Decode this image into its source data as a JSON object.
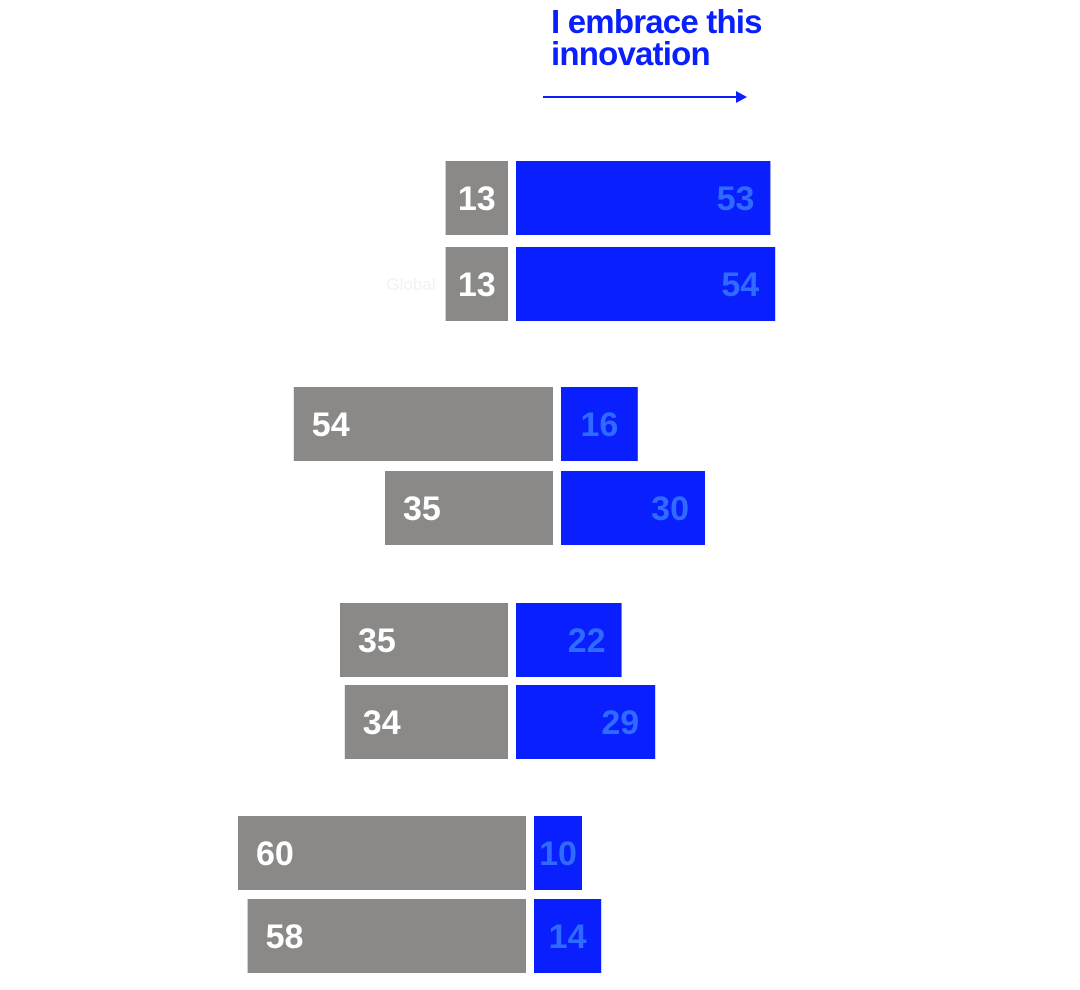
{
  "header": {
    "title": "I embrace this\ninnovation"
  },
  "colors": {
    "accent": "#0a1ffe",
    "blue_label": "#2f6bff",
    "negative": "#8a8987",
    "negative_label": "#ffffff",
    "row_label": "#f2f2f2"
  },
  "chart_data": {
    "type": "bar",
    "orientation": "horizontal-diverging",
    "title": "",
    "xlabel": "",
    "ylabel": "",
    "series": [
      {
        "name": "",
        "color": "#8a8987",
        "values": [
          13,
          13,
          54,
          35,
          35,
          34,
          60,
          58
        ]
      },
      {
        "name": "I embrace this innovation",
        "color": "#0a1ffe",
        "values": [
          53,
          54,
          16,
          30,
          22,
          29,
          10,
          14
        ]
      }
    ],
    "rows": [
      {
        "label": "",
        "group": 1
      },
      {
        "label": "Global",
        "group": 1
      },
      {
        "label": "",
        "group": 2
      },
      {
        "label": "",
        "group": 2
      },
      {
        "label": "",
        "group": 3
      },
      {
        "label": "",
        "group": 3
      },
      {
        "label": "",
        "group": 4
      },
      {
        "label": "",
        "group": 4
      }
    ],
    "grid": false,
    "legend": "top-center"
  }
}
